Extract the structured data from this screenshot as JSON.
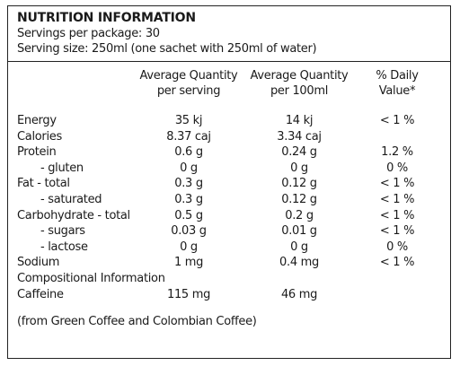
{
  "title": "NUTRITION INFORMATION",
  "servings_per_package": "Servings per package: 30",
  "serving_size": "Serving size: 250ml (one sachet with 250ml of water)",
  "columns": {
    "per_serving": "Average Quantity per serving",
    "per_100ml": "Average Quantity per 100ml",
    "daily_value": "% Daily Value*"
  },
  "rows": [
    {
      "label": "Energy",
      "per_serving": "35 kj",
      "per_100ml": "14 kj",
      "daily_value": "< 1 %"
    },
    {
      "label": "Calories",
      "per_serving": "8.37 caj",
      "per_100ml": "3.34 caj",
      "daily_value": ""
    },
    {
      "label": "Protein",
      "per_serving": "0.6 g",
      "per_100ml": "0.24 g",
      "daily_value": "1.2 %"
    },
    {
      "label": "- gluten",
      "per_serving": "0 g",
      "per_100ml": "0 g",
      "daily_value": "0 %"
    },
    {
      "label": "Fat  - total",
      "per_serving": "0.3 g",
      "per_100ml": "0.12 g",
      "daily_value": "< 1 %"
    },
    {
      "label": "- saturated",
      "per_serving": "0.3 g",
      "per_100ml": "0.12 g",
      "daily_value": "< 1 %"
    },
    {
      "label": "Carbohydrate - total",
      "per_serving": "0.5 g",
      "per_100ml": "0.2 g",
      "daily_value": "< 1 %"
    },
    {
      "label": "- sugars",
      "per_serving": "0.03 g",
      "per_100ml": "0.01 g",
      "daily_value": "< 1 %"
    },
    {
      "label": "- lactose",
      "per_serving": "0 g",
      "per_100ml": "0 g",
      "daily_value": "0 %"
    },
    {
      "label": "Sodium",
      "per_serving": "1 mg",
      "per_100ml": "0.4 mg",
      "daily_value": "< 1 %"
    },
    {
      "label": "Compositional Information",
      "per_serving": "",
      "per_100ml": "",
      "daily_value": ""
    },
    {
      "label": "Caffeine",
      "per_serving": "115 mg",
      "per_100ml": "46 mg",
      "daily_value": ""
    }
  ],
  "footnote": "(from Green Coffee and Colombian Coffee)"
}
